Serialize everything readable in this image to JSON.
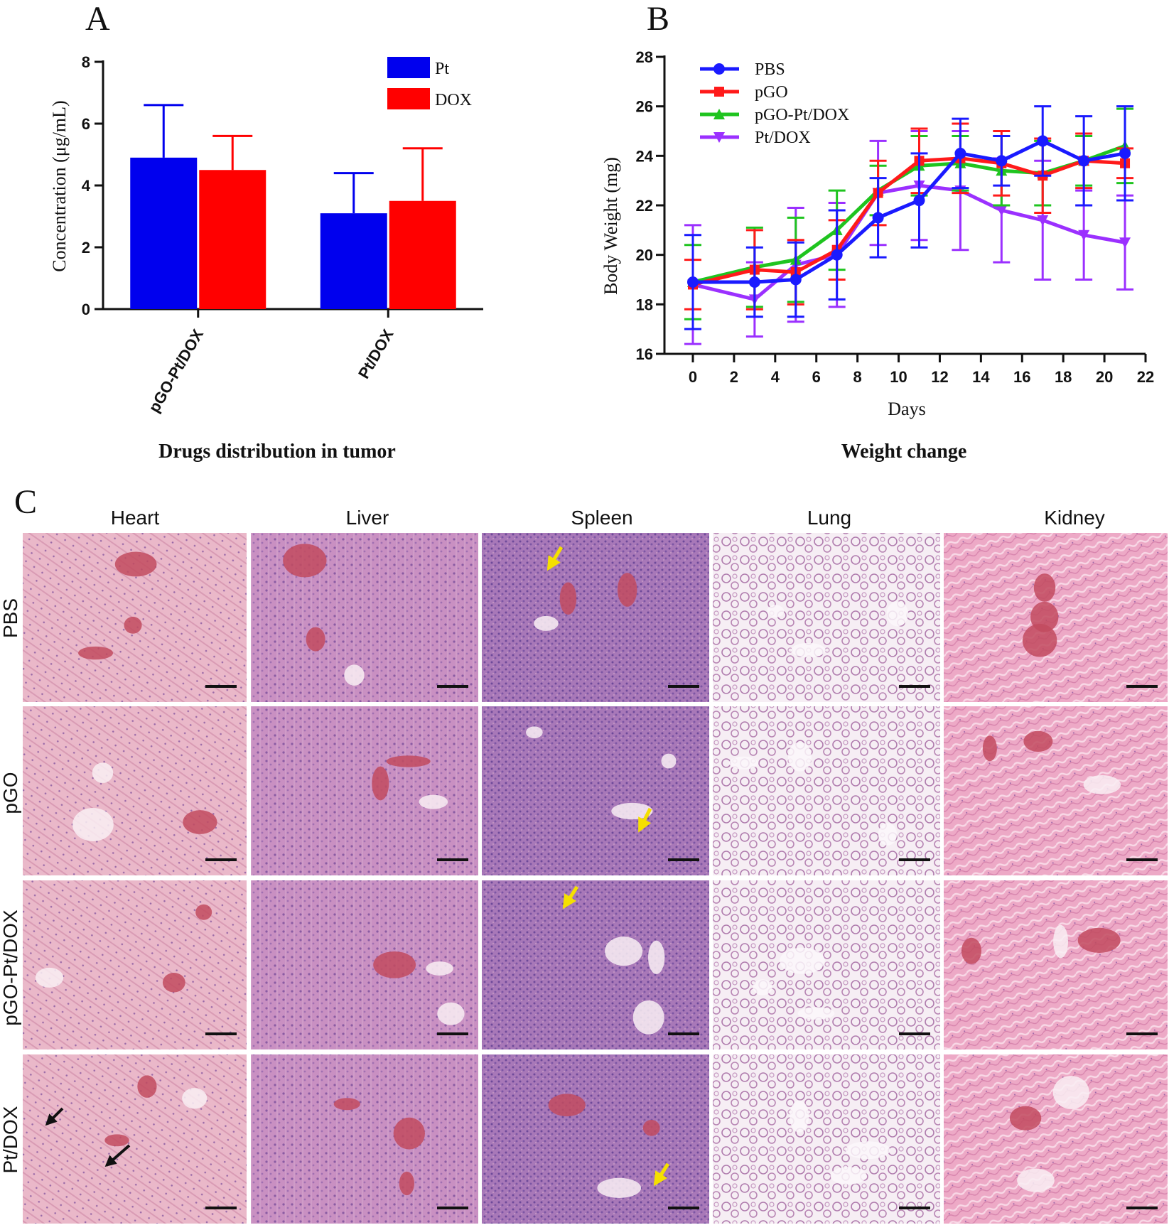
{
  "panel_letters": {
    "a": "A",
    "b": "B",
    "c": "C"
  },
  "chart_data": [
    {
      "type": "bar",
      "panel": "A",
      "title": "Drugs distribution in tumor",
      "xlabel": "",
      "ylabel": "Concentration (μg/mL)",
      "ylim": [
        0,
        8
      ],
      "yticks": [
        0,
        2,
        4,
        6,
        8
      ],
      "categories": [
        "pGO-Pt/DOX",
        "Pt/DOX"
      ],
      "series": [
        {
          "name": "Pt",
          "color": "#0000ee",
          "values": [
            4.9,
            3.1
          ],
          "error": [
            1.7,
            1.3
          ]
        },
        {
          "name": "DOX",
          "color": "#ff0000",
          "values": [
            4.5,
            3.5
          ],
          "error": [
            1.1,
            1.7
          ]
        }
      ],
      "legend": "top-right",
      "grid": false
    },
    {
      "type": "line",
      "panel": "B",
      "title": "Weight change",
      "xlabel": "Days",
      "ylabel": "Body Weight (mg)",
      "xlim": [
        0,
        22
      ],
      "ylim": [
        16,
        28
      ],
      "xticks": [
        0,
        2,
        4,
        6,
        8,
        10,
        12,
        14,
        16,
        18,
        20,
        22
      ],
      "yticks": [
        16,
        18,
        20,
        22,
        24,
        26,
        28
      ],
      "x": [
        0,
        3,
        5,
        7,
        9,
        11,
        13,
        15,
        17,
        19,
        21
      ],
      "series": [
        {
          "name": "PBS",
          "color": "#1a1aff",
          "marker": "circle",
          "values": [
            18.9,
            18.9,
            19.0,
            20.0,
            21.5,
            22.2,
            24.1,
            23.8,
            24.6,
            23.8,
            24.1
          ],
          "error": [
            1.9,
            1.4,
            1.5,
            1.8,
            1.6,
            1.9,
            1.4,
            1.0,
            1.4,
            1.8,
            1.9
          ]
        },
        {
          "name": "pGO",
          "color": "#ff1a1a",
          "marker": "square",
          "values": [
            18.8,
            19.4,
            19.3,
            20.2,
            22.5,
            23.8,
            23.9,
            23.7,
            23.2,
            23.8,
            23.7
          ],
          "error": [
            1.0,
            1.6,
            1.3,
            1.2,
            1.3,
            1.3,
            1.4,
            1.3,
            1.5,
            1.1,
            0.6
          ]
        },
        {
          "name": "pGO-Pt/DOX",
          "color": "#1fc41f",
          "marker": "triangle-up",
          "values": [
            18.9,
            19.5,
            19.8,
            21.0,
            22.6,
            23.6,
            23.7,
            23.4,
            23.3,
            23.8,
            24.4
          ],
          "error": [
            1.5,
            1.6,
            1.7,
            1.6,
            1.0,
            1.2,
            1.1,
            1.4,
            1.3,
            1.0,
            1.5
          ]
        },
        {
          "name": "Pt/DOX",
          "color": "#9b30ff",
          "marker": "triangle-down",
          "values": [
            18.8,
            18.2,
            19.6,
            20.0,
            22.5,
            22.8,
            22.6,
            21.8,
            21.4,
            20.8,
            20.5
          ],
          "error": [
            2.4,
            1.5,
            2.3,
            2.1,
            2.1,
            2.2,
            2.4,
            2.1,
            2.4,
            1.8,
            1.9
          ]
        }
      ],
      "legend": "top-left",
      "grid": false
    }
  ],
  "histology": {
    "columns": [
      "Heart",
      "Liver",
      "Spleen",
      "Lung",
      "Kidney"
    ],
    "rows": [
      "PBS",
      "pGO",
      "pGO-Pt/DOX",
      "Pt/DOX"
    ]
  }
}
